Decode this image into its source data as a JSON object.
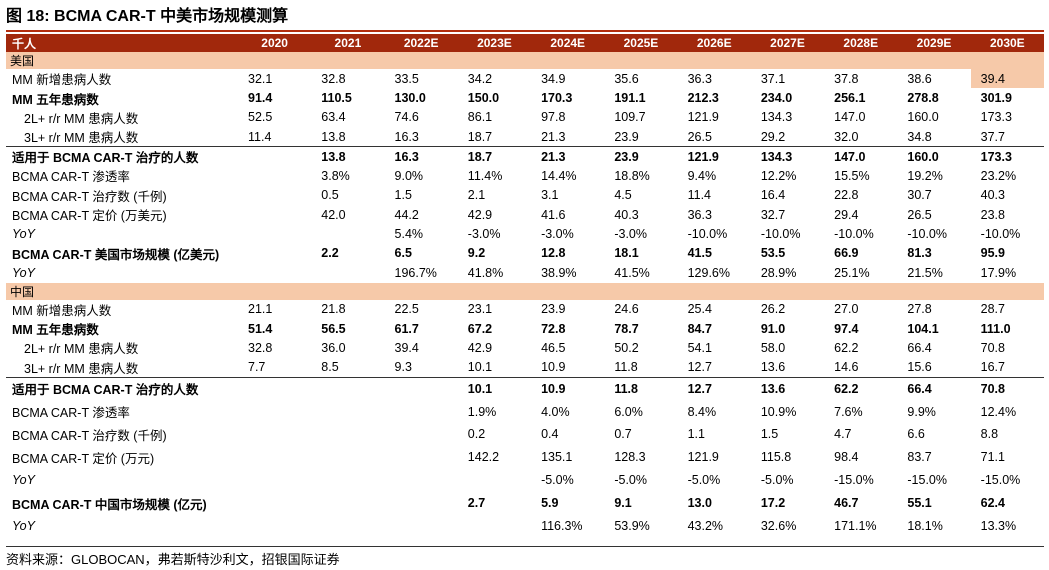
{
  "title": "图 18: BCMA CAR-T 中美市场规模测算",
  "source": "资料来源：GLOBOCAN，弗若斯特沙利文，招银国际证券",
  "chart_data": {
    "type": "table",
    "unit_label": "千人",
    "columns": [
      "2020",
      "2021",
      "2022E",
      "2023E",
      "2024E",
      "2025E",
      "2026E",
      "2027E",
      "2028E",
      "2029E",
      "2030E"
    ],
    "sections": [
      {
        "name": "美国",
        "rows": [
          {
            "label": "MM 新增患病人数",
            "values": [
              "32.1",
              "32.8",
              "33.5",
              "34.2",
              "34.9",
              "35.6",
              "36.3",
              "37.1",
              "37.8",
              "38.6",
              "39.4"
            ]
          },
          {
            "label": "MM 五年患病数",
            "values": [
              "91.4",
              "110.5",
              "130.0",
              "150.0",
              "170.3",
              "191.1",
              "212.3",
              "234.0",
              "256.1",
              "278.8",
              "301.9"
            ]
          },
          {
            "label": "2L+ r/r MM 患病人数",
            "values": [
              "52.5",
              "63.4",
              "74.6",
              "86.1",
              "97.8",
              "109.7",
              "121.9",
              "134.3",
              "147.0",
              "160.0",
              "173.3"
            ]
          },
          {
            "label": "3L+ r/r MM 患病人数",
            "values": [
              "11.4",
              "13.8",
              "16.3",
              "18.7",
              "21.3",
              "23.9",
              "26.5",
              "29.2",
              "32.0",
              "34.8",
              "37.7"
            ]
          },
          {
            "label": "适用于 BCMA CAR-T 治疗的人数",
            "values": [
              "",
              "13.8",
              "16.3",
              "18.7",
              "21.3",
              "23.9",
              "121.9",
              "134.3",
              "147.0",
              "160.0",
              "173.3"
            ]
          },
          {
            "label": "BCMA CAR-T 渗透率",
            "values": [
              "",
              "3.8%",
              "9.0%",
              "11.4%",
              "14.4%",
              "18.8%",
              "9.4%",
              "12.2%",
              "15.5%",
              "19.2%",
              "23.2%"
            ]
          },
          {
            "label": "BCMA CAR-T 治疗数 (千例)",
            "values": [
              "",
              "0.5",
              "1.5",
              "2.1",
              "3.1",
              "4.5",
              "11.4",
              "16.4",
              "22.8",
              "30.7",
              "40.3"
            ]
          },
          {
            "label": "BCMA CAR-T 定价 (万美元)",
            "values": [
              "",
              "42.0",
              "44.2",
              "42.9",
              "41.6",
              "40.3",
              "36.3",
              "32.7",
              "29.4",
              "26.5",
              "23.8"
            ]
          },
          {
            "label": "YoY",
            "values": [
              "",
              "",
              "5.4%",
              "-3.0%",
              "-3.0%",
              "-3.0%",
              "-10.0%",
              "-10.0%",
              "-10.0%",
              "-10.0%",
              "-10.0%"
            ]
          },
          {
            "label": "BCMA CAR-T 美国市场规模 (亿美元)",
            "values": [
              "",
              "2.2",
              "6.5",
              "9.2",
              "12.8",
              "18.1",
              "41.5",
              "53.5",
              "66.9",
              "81.3",
              "95.9"
            ]
          },
          {
            "label": "YoY",
            "values": [
              "",
              "",
              "196.7%",
              "41.8%",
              "38.9%",
              "41.5%",
              "129.6%",
              "28.9%",
              "25.1%",
              "21.5%",
              "17.9%"
            ]
          }
        ]
      },
      {
        "name": "中国",
        "rows": [
          {
            "label": "MM 新增患病人数",
            "values": [
              "21.1",
              "21.8",
              "22.5",
              "23.1",
              "23.9",
              "24.6",
              "25.4",
              "26.2",
              "27.0",
              "27.8",
              "28.7"
            ]
          },
          {
            "label": "MM 五年患病数",
            "values": [
              "51.4",
              "56.5",
              "61.7",
              "67.2",
              "72.8",
              "78.7",
              "84.7",
              "91.0",
              "97.4",
              "104.1",
              "111.0"
            ]
          },
          {
            "label": "2L+ r/r MM 患病人数",
            "values": [
              "32.8",
              "36.0",
              "39.4",
              "42.9",
              "46.5",
              "50.2",
              "54.1",
              "58.0",
              "62.2",
              "66.4",
              "70.8"
            ]
          },
          {
            "label": "3L+ r/r MM 患病人数",
            "values": [
              "7.7",
              "8.5",
              "9.3",
              "10.1",
              "10.9",
              "11.8",
              "12.7",
              "13.6",
              "14.6",
              "15.6",
              "16.7"
            ]
          },
          {
            "label": "适用于 BCMA CAR-T 治疗的人数",
            "values": [
              "",
              "",
              "",
              "10.1",
              "10.9",
              "11.8",
              "12.7",
              "13.6",
              "62.2",
              "66.4",
              "70.8"
            ]
          },
          {
            "label": "BCMA CAR-T 渗透率",
            "values": [
              "",
              "",
              "",
              "1.9%",
              "4.0%",
              "6.0%",
              "8.4%",
              "10.9%",
              "7.6%",
              "9.9%",
              "12.4%"
            ]
          },
          {
            "label": "BCMA CAR-T 治疗数 (千例)",
            "values": [
              "",
              "",
              "",
              "0.2",
              "0.4",
              "0.7",
              "1.1",
              "1.5",
              "4.7",
              "6.6",
              "8.8"
            ]
          },
          {
            "label": "BCMA CAR-T 定价 (万元)",
            "values": [
              "",
              "",
              "",
              "142.2",
              "135.1",
              "128.3",
              "121.9",
              "115.8",
              "98.4",
              "83.7",
              "71.1"
            ]
          },
          {
            "label": "YoY",
            "values": [
              "",
              "",
              "",
              "",
              "-5.0%",
              "-5.0%",
              "-5.0%",
              "-5.0%",
              "-15.0%",
              "-15.0%",
              "-15.0%"
            ]
          },
          {
            "label": "BCMA CAR-T 中国市场规模 (亿元)",
            "values": [
              "",
              "",
              "",
              "2.7",
              "5.9",
              "9.1",
              "13.0",
              "17.2",
              "46.7",
              "55.1",
              "62.4"
            ]
          },
          {
            "label": "YoY",
            "values": [
              "",
              "",
              "",
              "",
              "116.3%",
              "53.9%",
              "43.2%",
              "32.6%",
              "171.1%",
              "18.1%",
              "13.3%"
            ]
          }
        ]
      }
    ]
  }
}
